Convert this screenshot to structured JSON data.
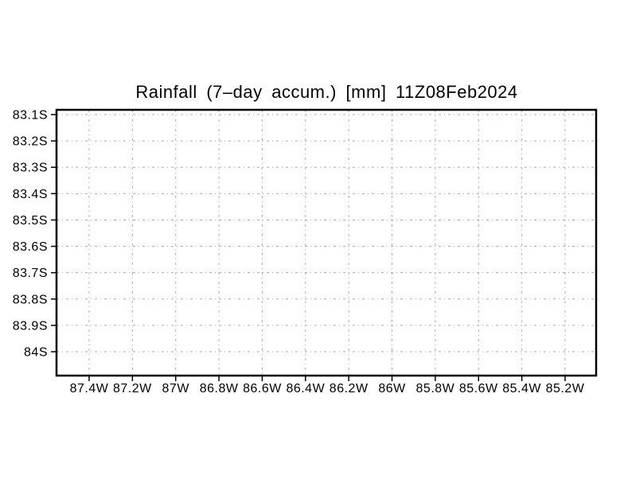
{
  "chart_data": {
    "type": "heatmap",
    "title": "Rainfall (7–day accum.) [mm] 11Z08Feb2024",
    "variable": "Rainfall (7-day accum.)",
    "units": "mm",
    "valid_time": "11Z08Feb2024",
    "xlabel": "",
    "ylabel": "",
    "x_tick_labels": [
      "87.4W",
      "87.2W",
      "87W",
      "86.8W",
      "86.6W",
      "86.4W",
      "86.2W",
      "86W",
      "85.8W",
      "85.6W",
      "85.4W",
      "85.2W"
    ],
    "y_tick_labels": [
      "83.1S",
      "83.2S",
      "83.3S",
      "83.4S",
      "83.5S",
      "83.6S",
      "83.7S",
      "83.8S",
      "83.9S",
      "84S"
    ],
    "x_ticks_deg_west": [
      87.4,
      87.2,
      87.0,
      86.8,
      86.6,
      86.4,
      86.2,
      86.0,
      85.8,
      85.6,
      85.4,
      85.2
    ],
    "y_ticks_deg_south": [
      83.1,
      83.2,
      83.3,
      83.4,
      83.5,
      83.6,
      83.7,
      83.8,
      83.9,
      84.0
    ],
    "grid": true,
    "legend": "none",
    "series": [],
    "note": "plot area is empty; no rainfall values rendered",
    "colors": {
      "background": "#ffffff",
      "frame": "#000000",
      "grid": "#aaaaaa",
      "text": "#000000"
    }
  }
}
